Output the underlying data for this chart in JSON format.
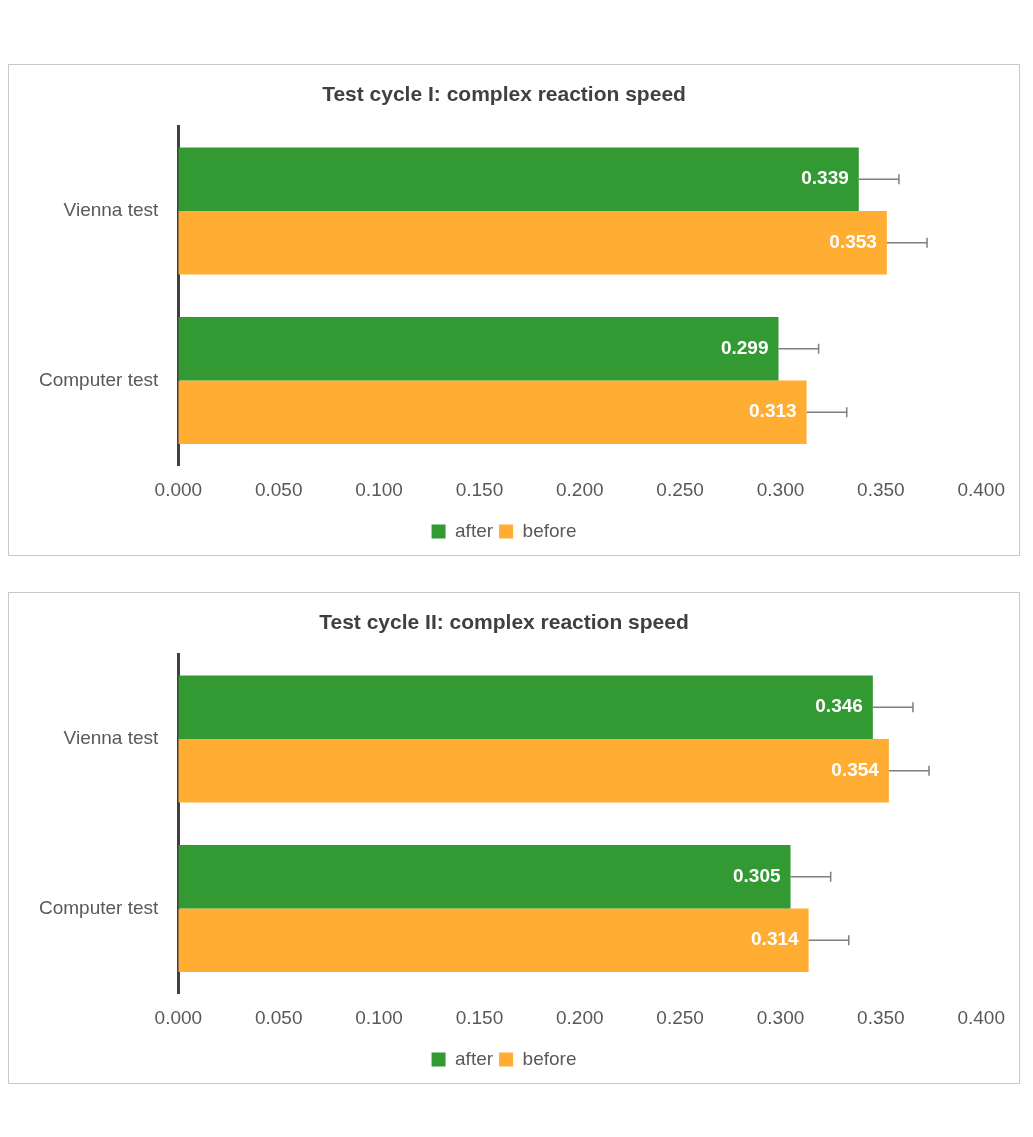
{
  "chart_data": [
    {
      "type": "bar",
      "orientation": "horizontal",
      "title": "Test cycle I: complex reaction speed",
      "categories": [
        "Vienna test",
        "Computer test"
      ],
      "series": [
        {
          "name": "after",
          "color": "#339933",
          "values": [
            0.339,
            0.299
          ],
          "errors": [
            [
              0.339,
              0.359
            ],
            [
              0.299,
              0.319
            ]
          ]
        },
        {
          "name": "before",
          "color": "#ffad33",
          "values": [
            0.353,
            0.313
          ],
          "errors": [
            [
              0.353,
              0.373
            ],
            [
              0.313,
              0.333
            ]
          ]
        }
      ],
      "xlim": [
        0,
        0.4
      ],
      "xticks": [
        {
          "value": 0,
          "label": "0.000"
        },
        {
          "value": 0.05,
          "label": "0.050"
        },
        {
          "value": 0.1,
          "label": "0.100"
        },
        {
          "value": 0.15,
          "label": "0.150"
        },
        {
          "value": 0.2,
          "label": "0.200"
        },
        {
          "value": 0.25,
          "label": "0.250"
        },
        {
          "value": 0.3,
          "label": "0.300"
        },
        {
          "value": 0.35,
          "label": "0.350"
        },
        {
          "value": 0.4,
          "label": "0.400"
        }
      ],
      "data_labels": true,
      "legend": "bottom"
    },
    {
      "type": "bar",
      "orientation": "horizontal",
      "title": "Test cycle II: complex reaction speed",
      "categories": [
        "Vienna test",
        "Computer test"
      ],
      "series": [
        {
          "name": "after",
          "color": "#339933",
          "values": [
            0.346,
            0.305
          ],
          "errors": [
            [
              0.346,
              0.366
            ],
            [
              0.305,
              0.325
            ]
          ]
        },
        {
          "name": "before",
          "color": "#ffad33",
          "values": [
            0.354,
            0.314
          ],
          "errors": [
            [
              0.354,
              0.374
            ],
            [
              0.314,
              0.334
            ]
          ]
        }
      ],
      "xlim": [
        0,
        0.4
      ],
      "xticks": [
        {
          "value": 0,
          "label": "0.000"
        },
        {
          "value": 0.05,
          "label": "0.050"
        },
        {
          "value": 0.1,
          "label": "0.100"
        },
        {
          "value": 0.15,
          "label": "0.150"
        },
        {
          "value": 0.2,
          "label": "0.200"
        },
        {
          "value": 0.25,
          "label": "0.250"
        },
        {
          "value": 0.3,
          "label": "0.300"
        },
        {
          "value": 0.35,
          "label": "0.350"
        },
        {
          "value": 0.4,
          "label": "0.400"
        }
      ],
      "data_labels": true,
      "legend": "bottom"
    }
  ]
}
